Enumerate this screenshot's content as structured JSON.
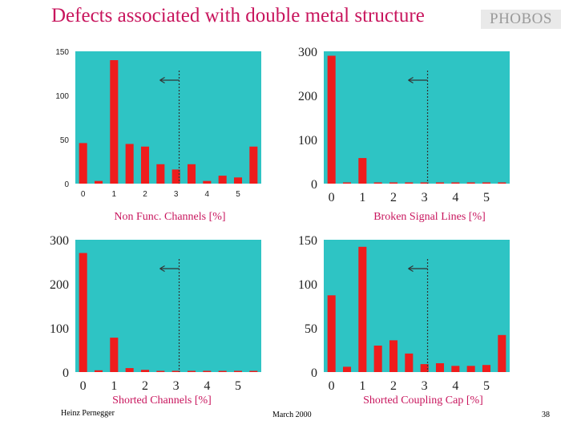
{
  "title": "Defects associated with double metal structure",
  "logo": "PHOBOS",
  "footer": {
    "author": "Heinz Pernegger",
    "date": "March 2000",
    "page": "38"
  },
  "colors": {
    "background": "#2ec4c4",
    "bar": "#ee1c1c",
    "title": "#c8155d"
  },
  "chart_data": [
    {
      "type": "bar",
      "xlabel": "Non Func. Channels [%]",
      "x": [
        0,
        0.5,
        1,
        1.5,
        2,
        2.5,
        3,
        3.5,
        4,
        4.5,
        5,
        5.5
      ],
      "values": [
        46,
        3,
        140,
        45,
        42,
        22,
        16,
        22,
        3,
        9,
        7,
        42
      ],
      "ylim": [
        0,
        150
      ],
      "yticks": [
        0,
        50,
        100,
        150
      ],
      "xticks": [
        0,
        1,
        2,
        3,
        4,
        5
      ],
      "cut_line": 3.1,
      "grid": false,
      "tick_style": "small"
    },
    {
      "type": "bar",
      "xlabel": "Broken Signal Lines [%]",
      "x": [
        0,
        0.5,
        1,
        1.5,
        2,
        2.5,
        3,
        3.5,
        4,
        4.5,
        5,
        5.5
      ],
      "values": [
        290,
        1,
        58,
        1,
        1,
        1,
        1,
        1,
        1,
        1,
        1,
        1
      ],
      "ylim": [
        0,
        300
      ],
      "yticks": [
        0,
        100,
        200,
        300
      ],
      "xticks": [
        0,
        1,
        2,
        3,
        4,
        5
      ],
      "cut_line": 3.1,
      "grid": false,
      "tick_style": "big"
    },
    {
      "type": "bar",
      "xlabel": "Shorted Channels [%]",
      "x": [
        0,
        0.5,
        1,
        1.5,
        2,
        2.5,
        3,
        3.5,
        4,
        4.5,
        5,
        5.5
      ],
      "values": [
        270,
        4,
        78,
        9,
        5,
        1,
        1,
        1,
        2,
        1,
        1,
        2
      ],
      "ylim": [
        0,
        300
      ],
      "yticks": [
        0,
        100,
        200,
        300
      ],
      "xticks": [
        0,
        1,
        2,
        3,
        4,
        5
      ],
      "cut_line": 3.1,
      "grid": false,
      "tick_style": "big"
    },
    {
      "type": "bar",
      "xlabel": "Shorted Coupling Cap [%]",
      "x": [
        0,
        0.5,
        1,
        1.5,
        2,
        2.5,
        3,
        3.5,
        4,
        4.5,
        5,
        5.5
      ],
      "values": [
        87,
        6,
        142,
        30,
        36,
        21,
        9,
        10,
        7,
        7,
        8,
        42
      ],
      "ylim": [
        0,
        150
      ],
      "yticks": [
        0,
        50,
        100,
        150
      ],
      "xticks": [
        0,
        1,
        2,
        3,
        4,
        5
      ],
      "cut_line": 3.1,
      "grid": false,
      "tick_style": "big"
    }
  ]
}
